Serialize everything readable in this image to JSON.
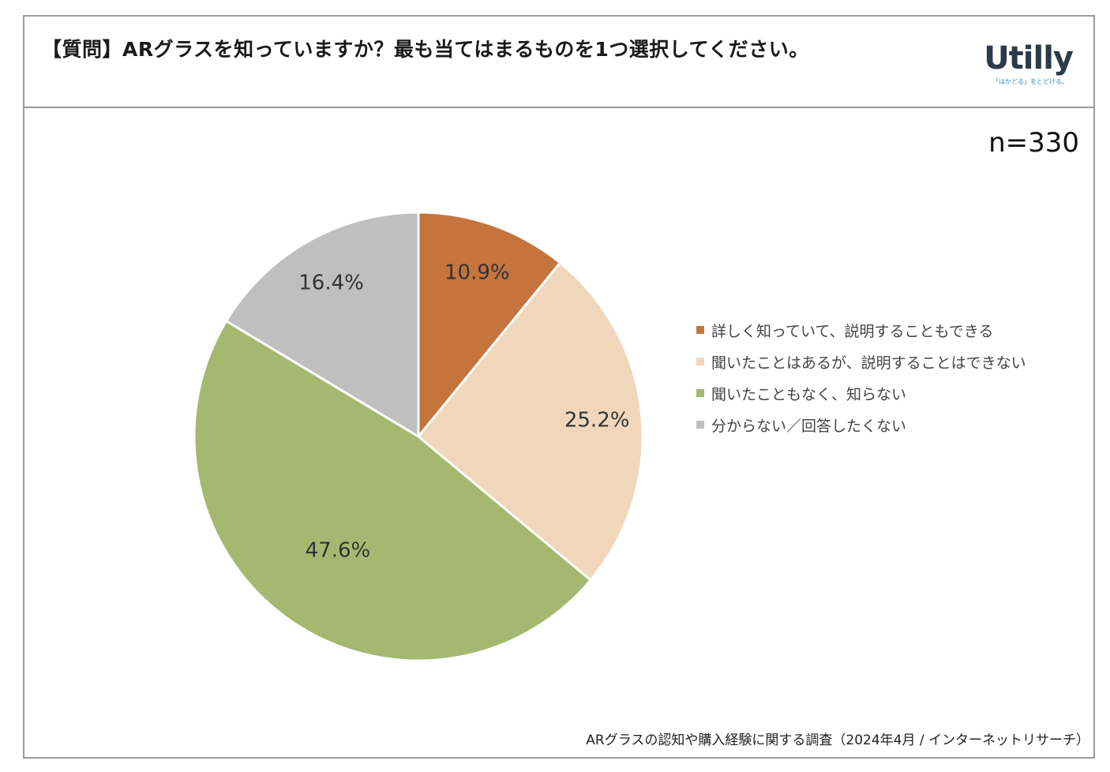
{
  "header": {
    "title": "【質問】ARグラスを知っていますか？最も当てはまるものを1つ選択してください。",
    "logo_text": "Utilly",
    "logo_tagline": "「はかどる」をとどける。"
  },
  "sample_size": "n=330",
  "source_note": "ARグラスの認知や購入経験に関する調査（2024年4月 / インターネットリサーチ）",
  "chart_data": {
    "type": "pie",
    "categories": [
      "詳しく知っていて、説明することもできる",
      "聞いたことはあるが、説明することはできない",
      "聞いたこともなく、知らない",
      "分からない／回答したくない"
    ],
    "values": [
      10.9,
      25.2,
      47.6,
      16.4
    ],
    "labels": [
      "10.9%",
      "25.2%",
      "47.6%",
      "16.4%"
    ],
    "colors": [
      "#c5743d",
      "#f0d7bb",
      "#a5b870",
      "#bfbfbf"
    ],
    "start_angle": "12 o'clock",
    "direction": "clockwise",
    "legend_position": "right"
  }
}
